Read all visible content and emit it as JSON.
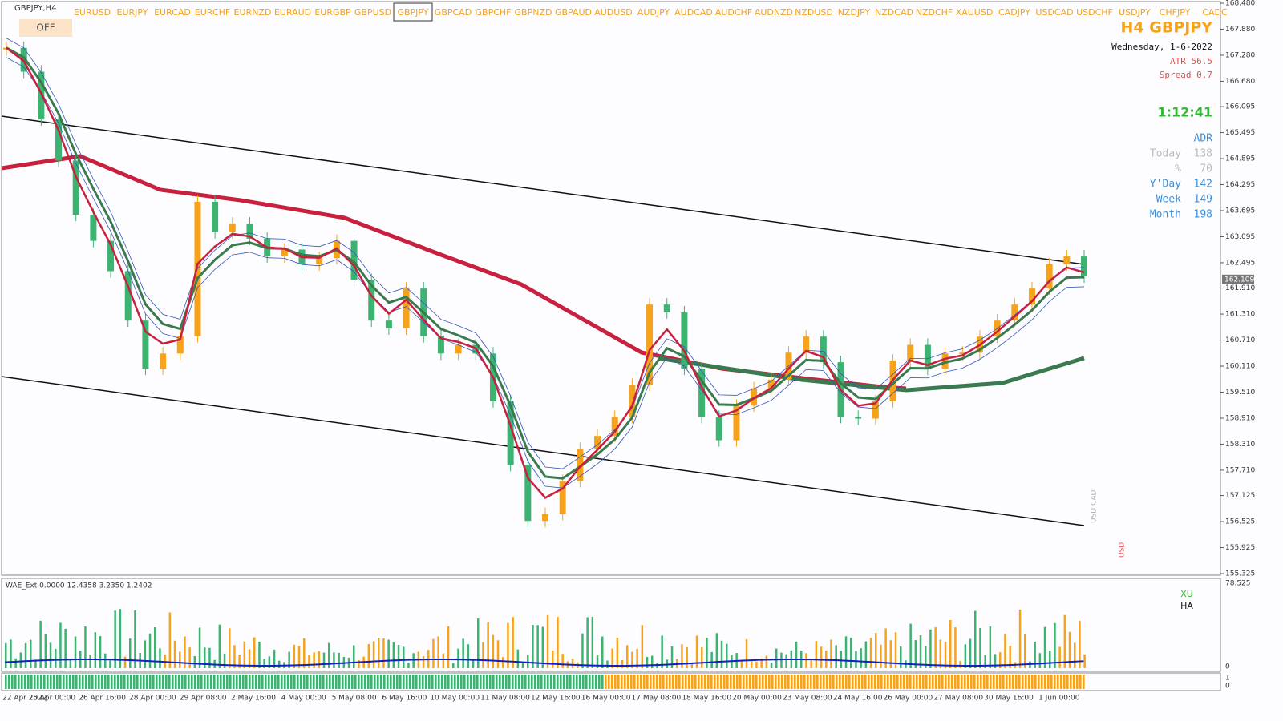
{
  "window": {
    "symbol_label": "GBPJPY,H4",
    "toggle": "OFF"
  },
  "symbols": [
    "EURUSD",
    "EURJPY",
    "EURCAD",
    "EURCHF",
    "EURNZD",
    "EURAUD",
    "EURGBP",
    "GBPUSD",
    "GBPJPY",
    "GBPCAD",
    "GBPCHF",
    "GBPNZD",
    "GBPAUD",
    "AUDUSD",
    "AUDJPY",
    "AUDCAD",
    "AUDCHF",
    "AUDNZD",
    "NZDUSD",
    "NZDJPY",
    "NZDCAD",
    "NZDCHF",
    "XAUUSD",
    "CADJPY",
    "USDCAD",
    "USDCHF",
    "USDJPY",
    "CHFJPY",
    "CADC"
  ],
  "info": {
    "title": "H4 GBPJPY",
    "date": "Wednesday, 1-6-2022",
    "atr": "ATR 56.5",
    "spread": "Spread 0.7",
    "timer": "1:12:41",
    "adr_title": "ADR",
    "adr": [
      {
        "label": "Today",
        "value": 138
      },
      {
        "label": "%",
        "value": 70
      },
      {
        "label": "Y'Day",
        "value": 142
      },
      {
        "label": "Week",
        "value": 149
      },
      {
        "label": "Month",
        "value": 198
      }
    ]
  },
  "chart": {
    "up_color": "#f7a21b",
    "down_color": "#3cb371",
    "ylim": [
      155.325,
      168.48
    ],
    "yticks": [
      {
        "value": 168.48,
        "label": "168.480"
      },
      {
        "value": 167.88,
        "label": "167.880"
      },
      {
        "value": 167.28,
        "label": "167.280"
      },
      {
        "value": 166.68,
        "label": "166.680"
      },
      166.095,
      165.495,
      164.895,
      164.295,
      163.695,
      163.095,
      162.495,
      {
        "value": 161.91,
        "label": "161.910"
      },
      {
        "value": 161.31,
        "label": "161.310"
      },
      {
        "value": 160.71,
        "label": "160.710"
      },
      {
        "value": 160.11,
        "label": "160.110"
      },
      {
        "value": 159.51,
        "label": "159.510"
      },
      {
        "value": 158.91,
        "label": "158.910"
      },
      {
        "value": 158.31,
        "label": "158.310"
      },
      {
        "value": 157.71,
        "label": "157.710"
      },
      157.125,
      156.525,
      155.925,
      155.325
    ],
    "current_price": 162.109,
    "closes": [
      167.45,
      166.9,
      165.8,
      164.85,
      163.6,
      163,
      162.3,
      161.16,
      160.05,
      160.4,
      160.8,
      163.9,
      163.2,
      163.4,
      163.05,
      162.64,
      162.8,
      162.46,
      162.6,
      163,
      162.1,
      161.16,
      160.98,
      161.9,
      160.8,
      160.4,
      160.6,
      160.4,
      159.3,
      157.83,
      156.54,
      156.7,
      157.46,
      158.2,
      158.5,
      158.94,
      159.68,
      161.53,
      161.35,
      160.05,
      158.94,
      158.4,
      159.2,
      159.6,
      159.8,
      160.42,
      160.79,
      160.2,
      158.94,
      158.9,
      159.3,
      160.24,
      160.6,
      160.05,
      160.4,
      160.42,
      160.79,
      161.16,
      161.53,
      161.9,
      162.46,
      162.64,
      162.18
    ],
    "markers": [
      "USD CAD",
      "USD"
    ]
  },
  "oscillator": {
    "label": "WAE_Ext 0.0000 12.4358 3.2350 1.2402",
    "yticks": [
      78.525,
      0
    ]
  },
  "strip": {
    "labels": [
      "XU",
      "HA"
    ],
    "yticks": [
      1,
      0
    ]
  },
  "dates": [
    "22 Apr 2022",
    "25 Apr 00:00",
    "26 Apr 16:00",
    "28 Apr 00:00",
    "29 Apr 08:00",
    "2 May 16:00",
    "4 May 00:00",
    "5 May 08:00",
    "6 May 16:00",
    "10 May 00:00",
    "11 May 08:00",
    "12 May 16:00",
    "16 May 00:00",
    "17 May 08:00",
    "18 May 16:00",
    "20 May 00:00",
    "23 May 08:00",
    "24 May 16:00",
    "26 May 00:00",
    "27 May 08:00",
    "30 May 16:00",
    "1 Jun 00:00"
  ]
}
